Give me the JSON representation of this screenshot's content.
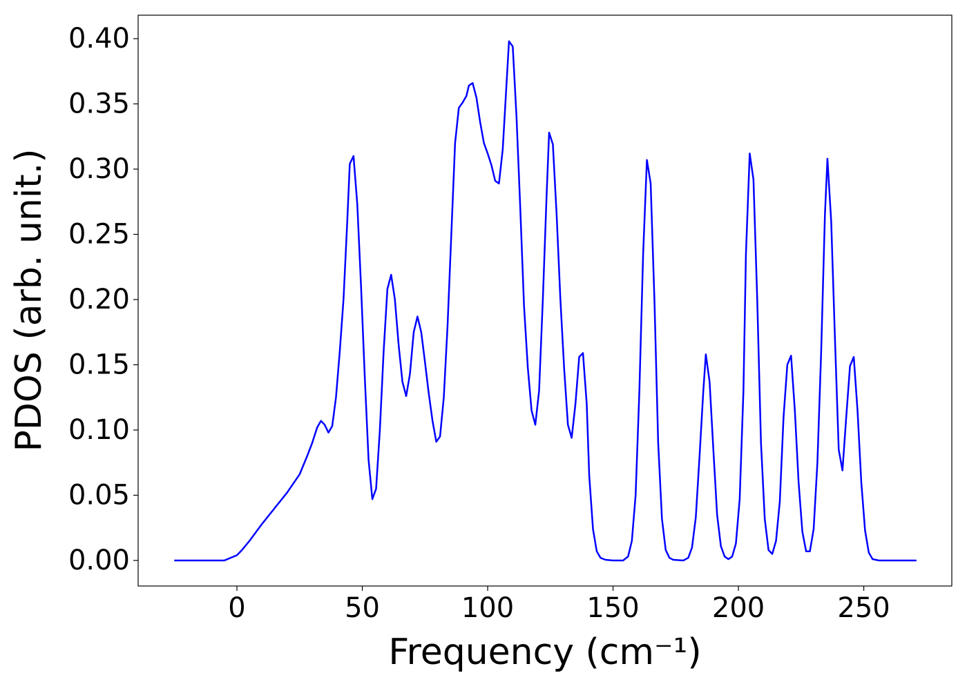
{
  "chart_data": {
    "type": "line",
    "xlabel": "Frequency (cm⁻¹)",
    "ylabel": "PDOS (arb. unit.)",
    "color": "#0000ff",
    "x": [
      -25,
      -5,
      0,
      2,
      5,
      10,
      15,
      20,
      25,
      28,
      30,
      32,
      33.5,
      35,
      36.5,
      38,
      39.5,
      41,
      42.5,
      44,
      45,
      46.5,
      48,
      49.5,
      51,
      52.5,
      54,
      55.5,
      57,
      58.5,
      60,
      61.5,
      63,
      64.5,
      66,
      67.5,
      69,
      70.5,
      72,
      73.5,
      75,
      76.5,
      78,
      79.5,
      81,
      82.5,
      84,
      85.5,
      87,
      88.5,
      90,
      91.5,
      92.5,
      94,
      95.5,
      97,
      98.5,
      100,
      101.5,
      103,
      104.5,
      106,
      107.5,
      108.5,
      110,
      111.5,
      113,
      114.5,
      116,
      117.5,
      119,
      120.5,
      122,
      123.5,
      124.5,
      126,
      127.5,
      129,
      130.5,
      132,
      133.5,
      135,
      136.5,
      138,
      139.5,
      140.5,
      142,
      143.5,
      145,
      147,
      150,
      154,
      156,
      157.5,
      159,
      160.5,
      162,
      163.5,
      165,
      166.5,
      168,
      169.5,
      171,
      172.5,
      174,
      178,
      180,
      181.5,
      183,
      184.5,
      186,
      187,
      188.5,
      190,
      191.5,
      193,
      194.5,
      196,
      197.5,
      199,
      200.5,
      202,
      203,
      204.5,
      206,
      207.5,
      209,
      210.5,
      212,
      213.5,
      215,
      216.5,
      218,
      219.5,
      221,
      222.5,
      224,
      225.5,
      227,
      228.5,
      230,
      231.5,
      233,
      234.5,
      235.5,
      237,
      238.5,
      240,
      241.5,
      243,
      244.5,
      246,
      247.5,
      249,
      250.5,
      252,
      253.5,
      256,
      271
    ],
    "values": [
      0,
      0,
      0.004,
      0.008,
      0.015,
      0.028,
      0.04,
      0.052,
      0.066,
      0.08,
      0.09,
      0.102,
      0.107,
      0.104,
      0.098,
      0.103,
      0.125,
      0.16,
      0.2,
      0.26,
      0.304,
      0.31,
      0.273,
      0.21,
      0.14,
      0.077,
      0.047,
      0.055,
      0.1,
      0.16,
      0.208,
      0.219,
      0.2,
      0.165,
      0.137,
      0.126,
      0.143,
      0.175,
      0.187,
      0.175,
      0.152,
      0.128,
      0.107,
      0.091,
      0.095,
      0.125,
      0.18,
      0.25,
      0.32,
      0.347,
      0.351,
      0.356,
      0.364,
      0.366,
      0.355,
      0.336,
      0.32,
      0.312,
      0.303,
      0.291,
      0.289,
      0.315,
      0.365,
      0.398,
      0.394,
      0.34,
      0.27,
      0.195,
      0.148,
      0.115,
      0.104,
      0.13,
      0.2,
      0.28,
      0.328,
      0.319,
      0.265,
      0.2,
      0.147,
      0.104,
      0.094,
      0.12,
      0.156,
      0.159,
      0.12,
      0.065,
      0.024,
      0.007,
      0.002,
      0.0005,
      0,
      0,
      0.003,
      0.015,
      0.05,
      0.13,
      0.235,
      0.307,
      0.289,
      0.2,
      0.09,
      0.032,
      0.008,
      0.002,
      0.0005,
      0,
      0.002,
      0.01,
      0.033,
      0.08,
      0.13,
      0.158,
      0.137,
      0.085,
      0.035,
      0.011,
      0.003,
      0.001,
      0.003,
      0.013,
      0.047,
      0.13,
      0.235,
      0.312,
      0.292,
      0.2,
      0.09,
      0.032,
      0.008,
      0.005,
      0.015,
      0.045,
      0.11,
      0.15,
      0.157,
      0.115,
      0.06,
      0.022,
      0.007,
      0.007,
      0.024,
      0.075,
      0.16,
      0.265,
      0.308,
      0.26,
      0.17,
      0.085,
      0.069,
      0.11,
      0.149,
      0.156,
      0.115,
      0.06,
      0.023,
      0.006,
      0.001,
      0,
      0
    ],
    "xlim": [
      -39.4,
      285.1
    ],
    "ylim": [
      -0.0196,
      0.418
    ],
    "xticks": [
      0,
      50,
      100,
      150,
      200,
      250
    ],
    "yticks": [
      {
        "value": 0,
        "label": "0.00"
      },
      {
        "value": 0.05,
        "label": "0.05"
      },
      {
        "value": 0.1,
        "label": "0.10"
      },
      {
        "value": 0.15,
        "label": "0.15"
      },
      {
        "value": 0.2,
        "label": "0.20"
      },
      {
        "value": 0.25,
        "label": "0.25"
      },
      {
        "value": 0.3,
        "label": "0.30"
      },
      {
        "value": 0.35,
        "label": "0.35"
      },
      {
        "value": 0.4,
        "label": "0.40"
      }
    ]
  }
}
